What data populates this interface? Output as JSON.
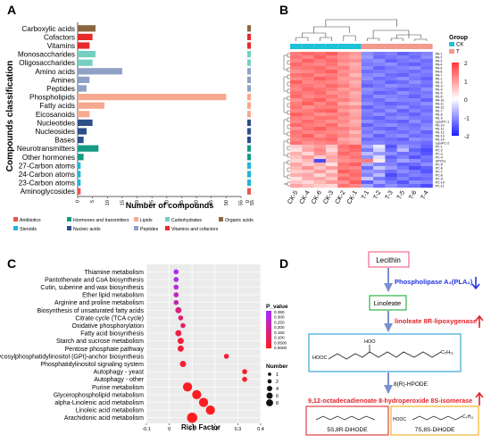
{
  "panels": {
    "a": "A",
    "b": "B",
    "c": "C",
    "d": "D"
  },
  "chart_data": [
    {
      "type": "bar",
      "panel": "A",
      "ylabel": "Compounds classification",
      "xlabel": "Number of compounds",
      "xlim": [
        0,
        55
      ],
      "xticks": [
        0,
        5,
        10,
        15,
        20,
        25,
        30,
        35,
        40,
        45,
        50,
        55
      ],
      "categories": [
        "Carboxylic acids",
        "Cofactors",
        "Vitamins",
        "Monosaccharides",
        "Oligosaccharides",
        "Amino acids",
        "Amines",
        "Peptides",
        "Phospholipids",
        "Fatty acids",
        "Eicosanoids",
        "Nucleotides",
        "Nucleosides",
        "Bases",
        "Neurotransmitters",
        "Other hormones",
        "27-Carbon atoms",
        "24-Carbon atoms",
        "23-Carbon atoms",
        "Aminoglycosides"
      ],
      "values": [
        6,
        5,
        4,
        6,
        5,
        15,
        4,
        3,
        50,
        9,
        4,
        5,
        3,
        2,
        7,
        2,
        1,
        1,
        1,
        1
      ],
      "groups": [
        "Organic acids",
        "Vitamins and cofactors",
        "Vitamins and cofactors",
        "Carbohydrates",
        "Carbohydrates",
        "Peptides",
        "Peptides",
        "Peptides",
        "Lipids",
        "Lipids",
        "Lipids",
        "Nucleic acids",
        "Nucleic acids",
        "Nucleic acids",
        "Hormones and transmitters",
        "Hormones and transmitters",
        "Steroids",
        "Steroids",
        "Steroids",
        "Antibiotics"
      ],
      "legend": [
        {
          "name": "Antibiotics",
          "color": "#e8564b"
        },
        {
          "name": "Hormones and transmitters",
          "color": "#159b82"
        },
        {
          "name": "Lipids",
          "color": "#f7a98f"
        },
        {
          "name": "Carbohydrates",
          "color": "#74cfc2"
        },
        {
          "name": "Organic acids",
          "color": "#8c6540"
        },
        {
          "name": "Steroids",
          "color": "#1fb6d9"
        },
        {
          "name": "Nucleic acids",
          "color": "#2c4f8a"
        },
        {
          "name": "Peptides",
          "color": "#8fa1c7"
        },
        {
          "name": "Vitamins and cofactors",
          "color": "#e62a2a"
        }
      ],
      "side_tick_labels": [
        "0",
        "55"
      ]
    },
    {
      "type": "heatmap",
      "panel": "B",
      "columns": [
        "CK-5",
        "CK-4",
        "CK-6",
        "CK-3",
        "CK-2",
        "CK-1",
        "T-1",
        "T-2",
        "T-3",
        "T-5",
        "T-6",
        "T-4"
      ],
      "column_groups": [
        "CK",
        "CK",
        "CK",
        "CK",
        "CK",
        "CK",
        "T",
        "T",
        "T",
        "T",
        "T",
        "T"
      ],
      "group_colors": {
        "CK": "#1ec2d6",
        "T": "#f4988c"
      },
      "legend_title": "Group",
      "rows": [
        "PA-1",
        "PA-2",
        "PA-3",
        "PA-4",
        "PA-5",
        "PA-6",
        "PA-7",
        "PE-1",
        "PE-2",
        "PE-3",
        "PE-4",
        "PE-5",
        "PE-6",
        "PA-10",
        "PA-11",
        "PA-12",
        "PE-7",
        "PE-8",
        "PE-9",
        "LysoPC-1",
        "PE-10",
        "PE-11",
        "PE-12",
        "PE-13",
        "PE-14",
        "LysoPC-2",
        "PC-1",
        "PC-2",
        "PC-3",
        "PC-4",
        "GPCho",
        "PC-5",
        "PC-6",
        "PC-7",
        "PC-8",
        "PC-9",
        "PC-10",
        "PC-11"
      ],
      "scale_ticks": [
        2,
        1,
        0,
        -1,
        -2
      ],
      "values": [
        [
          1.3,
          1.5,
          1.4,
          1.6,
          1.2,
          1.0,
          -1.0,
          -1.2,
          -1.1,
          -1.4,
          -1.2,
          -1.1
        ],
        [
          1.4,
          1.2,
          1.6,
          1.3,
          1.1,
          0.9,
          -0.9,
          -1.3,
          -1.2,
          -1.1,
          -1.3,
          -1.0
        ],
        [
          1.2,
          1.6,
          1.3,
          1.5,
          1.2,
          1.1,
          -1.1,
          -1.0,
          -1.4,
          -1.2,
          -1.1,
          -1.3
        ],
        [
          1.5,
          1.3,
          1.2,
          1.4,
          1.0,
          0.8,
          -1.2,
          -1.1,
          -1.0,
          -1.3,
          -1.4,
          -1.2
        ],
        [
          1.3,
          1.4,
          1.5,
          1.2,
          1.3,
          0.9,
          -1.0,
          -1.4,
          -1.2,
          -1.1,
          -1.0,
          -1.3
        ],
        [
          1.1,
          1.2,
          1.4,
          1.6,
          1.1,
          1.0,
          -1.3,
          -1.2,
          -1.1,
          -1.2,
          -1.3,
          -1.1
        ],
        [
          1.4,
          1.5,
          1.2,
          1.3,
          1.2,
          0.7,
          -1.1,
          -1.0,
          -1.3,
          -1.4,
          -1.1,
          -1.2
        ],
        [
          1.2,
          1.3,
          1.6,
          1.4,
          1.0,
          1.0,
          -1.0,
          -1.3,
          -1.2,
          -1.0,
          -1.2,
          -1.4
        ],
        [
          1.6,
          1.2,
          1.3,
          1.2,
          1.1,
          0.8,
          -1.2,
          -1.1,
          -1.4,
          -1.3,
          -1.0,
          -1.2
        ],
        [
          1.3,
          1.4,
          1.2,
          1.5,
          1.3,
          0.9,
          -1.4,
          -1.2,
          -1.0,
          -1.1,
          -1.2,
          -1.3
        ],
        [
          1.2,
          1.5,
          1.4,
          1.3,
          1.0,
          1.1,
          -1.0,
          -1.1,
          -1.2,
          -1.4,
          -1.3,
          -1.0
        ],
        [
          1.4,
          1.3,
          1.5,
          1.1,
          1.2,
          0.8,
          -1.1,
          -1.4,
          -1.3,
          -1.0,
          -1.2,
          -1.2
        ],
        [
          1.5,
          1.2,
          1.3,
          1.4,
          1.1,
          0.9,
          -1.3,
          -1.0,
          -1.1,
          -1.2,
          -1.4,
          -1.1
        ],
        [
          1.1,
          1.4,
          1.6,
          1.2,
          1.3,
          1.0,
          -1.2,
          -1.3,
          -1.0,
          -1.1,
          -1.1,
          -1.4
        ],
        [
          1.3,
          1.6,
          1.2,
          1.5,
          0.9,
          0.7,
          -1.0,
          -1.2,
          -1.4,
          -1.3,
          -1.2,
          -1.0
        ],
        [
          1.4,
          1.1,
          1.3,
          1.3,
          1.2,
          1.1,
          -1.4,
          -1.1,
          -1.2,
          -1.0,
          -1.3,
          -1.2
        ],
        [
          1.2,
          1.3,
          1.5,
          1.6,
          1.0,
          0.8,
          -1.1,
          -1.3,
          -1.0,
          -1.4,
          -1.1,
          -1.3
        ],
        [
          1.6,
          1.4,
          1.1,
          1.2,
          1.3,
          0.9,
          -1.2,
          -1.0,
          -1.3,
          -1.2,
          -1.4,
          -1.1
        ],
        [
          1.3,
          1.2,
          1.4,
          1.4,
          1.1,
          1.0,
          -1.3,
          -1.4,
          -1.1,
          -1.0,
          -1.2,
          -1.2
        ],
        [
          1.2,
          1.5,
          1.3,
          1.1,
          1.2,
          0.8,
          -1.0,
          -1.2,
          -1.3,
          -1.4,
          -1.0,
          -1.3
        ],
        [
          1.5,
          1.3,
          1.2,
          1.5,
          1.0,
          0.9,
          -1.4,
          -1.1,
          -1.0,
          -1.2,
          -1.3,
          -1.1
        ],
        [
          1.1,
          1.4,
          1.6,
          1.3,
          1.3,
          1.1,
          -1.1,
          -1.3,
          -1.4,
          -1.1,
          -1.2,
          -1.0
        ],
        [
          1.4,
          1.2,
          1.3,
          1.2,
          1.1,
          0.7,
          -1.2,
          -1.0,
          -1.2,
          -1.3,
          -1.1,
          -1.4
        ],
        [
          1.3,
          1.6,
          1.1,
          1.4,
          1.2,
          1.0,
          -1.0,
          -1.4,
          -1.1,
          -1.0,
          -1.3,
          -1.2
        ],
        [
          1.2,
          1.3,
          1.4,
          1.5,
          0.9,
          0.8,
          -1.3,
          -1.2,
          -1.3,
          -1.4,
          -1.0,
          -1.1
        ],
        [
          1.4,
          1.1,
          1.2,
          1.3,
          1.1,
          0.9,
          -1.1,
          -1.1,
          -1.2,
          -1.2,
          -1.2,
          -1.3
        ],
        [
          0.5,
          0.8,
          1.0,
          0.6,
          1.4,
          1.6,
          -0.8,
          -0.2,
          -1.5,
          -0.9,
          -1.1,
          -1.4
        ],
        [
          0.3,
          0.9,
          1.2,
          0.4,
          1.3,
          1.5,
          -1.2,
          -0.4,
          -1.3,
          -0.6,
          -1.4,
          -1.6
        ],
        [
          0.8,
          0.4,
          1.1,
          0.7,
          1.5,
          1.3,
          -0.6,
          -0.9,
          -1.0,
          -1.3,
          -1.2,
          -1.5
        ],
        [
          0.6,
          1.0,
          0.5,
          0.9,
          1.2,
          1.4,
          -1.0,
          -0.3,
          -1.4,
          -1.1,
          -1.5,
          -1.2
        ],
        [
          0.4,
          0.7,
          -1.6,
          0.8,
          1.1,
          1.2,
          1.3,
          0.2,
          -1.2,
          -0.8,
          -1.0,
          -1.3
        ],
        [
          0.9,
          0.5,
          0.8,
          0.3,
          1.4,
          1.6,
          -0.7,
          -1.1,
          -1.1,
          -1.4,
          -1.3,
          -1.0
        ],
        [
          0.7,
          1.1,
          0.6,
          1.0,
          1.3,
          1.2,
          -1.3,
          -0.5,
          -0.9,
          -1.2,
          -1.6,
          -1.4
        ],
        [
          0.5,
          0.6,
          1.0,
          0.5,
          1.6,
          1.4,
          -0.9,
          -1.0,
          -1.3,
          -1.0,
          -1.2,
          -1.5
        ],
        [
          0.8,
          0.9,
          0.4,
          0.9,
          1.2,
          1.5,
          -1.1,
          -0.6,
          -1.6,
          -1.3,
          -1.1,
          -1.2
        ],
        [
          0.3,
          0.8,
          0.9,
          0.6,
          1.5,
          1.3,
          -0.5,
          -1.2,
          -1.4,
          -1.1,
          -1.4,
          -1.3
        ],
        [
          0.6,
          0.4,
          0.7,
          1.0,
          1.1,
          1.6,
          -1.4,
          -0.8,
          -1.2,
          -1.5,
          -1.0,
          -1.1
        ],
        [
          0.9,
          0.7,
          0.5,
          0.4,
          1.4,
          1.2,
          -0.8,
          -1.3,
          -1.0,
          -1.2,
          -1.3,
          -1.6
        ]
      ]
    },
    {
      "type": "scatter",
      "panel": "C",
      "xlabel": "Rich Factor",
      "xlim": [
        -0.1,
        0.4
      ],
      "xticks": [
        -0.1,
        0,
        0.1,
        0.2,
        0.3,
        0.4
      ],
      "categories": [
        "Thiamine metabolism",
        "Pantothenate and CoA biosynthesis",
        "Cutin, suberine and wax biosynthesis",
        "Ether lipid metabolism",
        "Arginine and proline metabolism",
        "Biosynthesis of unsaturated fatty acids",
        "Citrate cycle (TCA cycle)",
        "Oxidative phosphorylation",
        "Fatty acid biosynthesis",
        "Starch and sucrose metabolism",
        "Pentose phosphate pathway",
        "Glycosylphosphatidylinositol (GPI)-anchor biosynthesis",
        "Phosphatidylinositol signaling system",
        "Autophagy - yeast",
        "Autophagy - other",
        "Purine metabolism",
        "Glycerophospholipid metabolism",
        "alpha-Linolenic acid metabolism",
        "Linoleic acid metabolism",
        "Arachidonic acid metabolism"
      ],
      "x": [
        0.03,
        0.03,
        0.03,
        0.03,
        0.03,
        0.04,
        0.05,
        0.06,
        0.04,
        0.05,
        0.05,
        0.25,
        0.06,
        0.33,
        0.33,
        0.08,
        0.12,
        0.15,
        0.18,
        0.1
      ],
      "number": [
        1,
        1,
        1,
        1,
        1,
        2,
        1,
        1,
        2,
        2,
        2,
        1,
        2,
        1,
        1,
        6,
        6,
        6,
        6,
        8
      ],
      "p_value": [
        0.33,
        0.32,
        0.3,
        0.25,
        0.22,
        0.15,
        0.12,
        0.1,
        0.06,
        0.05,
        0.05,
        0.04,
        0.035,
        0.02,
        0.02,
        0.01,
        0.008,
        0.005,
        0.004,
        0.001
      ],
      "color_legend_title": "P_value",
      "color_legend_ticks": [
        "0.350",
        "0.300",
        "0.250",
        "0.200",
        "0.150",
        "0.100",
        "0.0500",
        "0.0000"
      ],
      "size_legend_title": "Number",
      "size_legend_values": [
        1,
        2,
        4,
        6,
        8
      ],
      "color_scale": [
        "#ff1c1c",
        "#a32cff"
      ]
    }
  ],
  "pathway": {
    "lecithin": "Lecithin",
    "enzyme1": "Phospholipase A₂(PLA₂)",
    "linoleate": "Linoleate",
    "enzyme2": "linoleate 8R-lipoxygenase",
    "hpode": "8(R)-HPODE",
    "enzyme3": "9,12-octadecadienoate 8-hydroperoxide 8S-isomerase",
    "product1": "5S,8R-DiHODE",
    "product2": "7S,8S-DiHODE",
    "down_color": "#2233dd",
    "up_color": "#e3242b",
    "box_pink": "#f06b8a",
    "box_green": "#2fb34a",
    "box_blue": "#3aa7dd",
    "box_red": "#e04040",
    "box_orange": "#f2b22a"
  }
}
